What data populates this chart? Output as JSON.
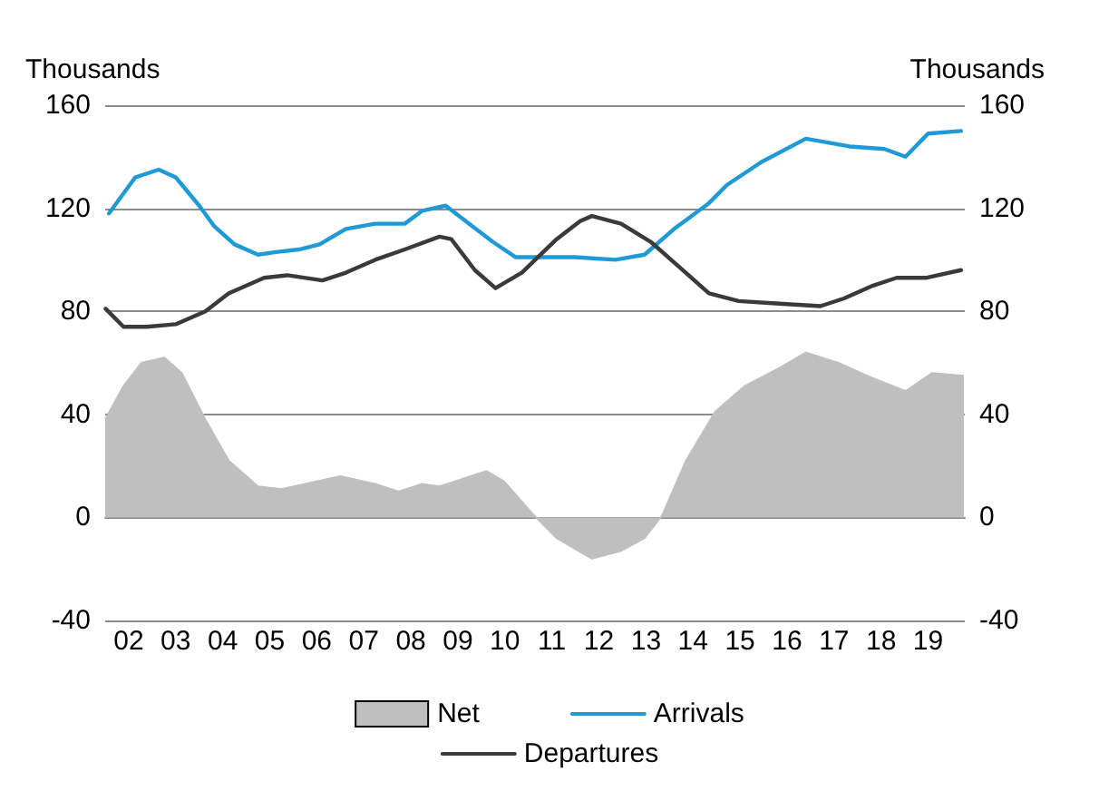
{
  "chart_data": {
    "type": "line",
    "ylabel": "Thousands",
    "y2label": "Thousands",
    "xlim": [
      2001.5,
      2019.78
    ],
    "xticks": [
      {
        "value": 2002,
        "label": "02"
      },
      {
        "value": 2003,
        "label": "03"
      },
      {
        "value": 2004,
        "label": "04"
      },
      {
        "value": 2005,
        "label": "05"
      },
      {
        "value": 2006,
        "label": "06"
      },
      {
        "value": 2007,
        "label": "07"
      },
      {
        "value": 2008,
        "label": "08"
      },
      {
        "value": 2009,
        "label": "09"
      },
      {
        "value": 2010,
        "label": "10"
      },
      {
        "value": 2011,
        "label": "11"
      },
      {
        "value": 2012,
        "label": "12"
      },
      {
        "value": 2013,
        "label": "13"
      },
      {
        "value": 2014,
        "label": "14"
      },
      {
        "value": 2015,
        "label": "15"
      },
      {
        "value": 2016,
        "label": "16"
      },
      {
        "value": 2017,
        "label": "17"
      },
      {
        "value": 2018,
        "label": "18"
      },
      {
        "value": 2019,
        "label": "19"
      }
    ],
    "ylim": [
      -40,
      160
    ],
    "yticks": [
      -40,
      0,
      40,
      80,
      120,
      160
    ],
    "y2lim": [
      -40,
      160
    ],
    "y2ticks": [
      -40,
      0,
      40,
      80,
      120,
      160
    ],
    "grid": "y",
    "legend": "bottom",
    "marker": "none",
    "line_style": "solid",
    "series": [
      {
        "name": "Net",
        "type": "area",
        "color": "#bfbfbf",
        "x": [
          2001.5,
          2001.89,
          2002.27,
          2002.76,
          2003.13,
          2003.63,
          2004.13,
          2004.75,
          2005.25,
          2005.75,
          2006.5,
          2007.24,
          2007.74,
          2008.24,
          2008.61,
          2009.61,
          2009.98,
          2010.61,
          2011.1,
          2011.85,
          2012.47,
          2012.97,
          2013.35,
          2013.85,
          2014.47,
          2015.1,
          2015.84,
          2016.4,
          2017.09,
          2017.83,
          2018.52,
          2019.08,
          2019.76
        ],
        "values": [
          38,
          51,
          60,
          62,
          56,
          38,
          22,
          12,
          11,
          13,
          16,
          13,
          10,
          13,
          12,
          18,
          14,
          1,
          -8,
          -16,
          -13,
          -8,
          1,
          22,
          41,
          51,
          58,
          64,
          60,
          54,
          49,
          56,
          55
        ]
      },
      {
        "name": "Arrivals",
        "color": "#1f9ad6",
        "x": [
          2001.58,
          2002.14,
          2002.64,
          2003.0,
          2003.5,
          2003.82,
          2004.25,
          2004.75,
          2005.13,
          2005.62,
          2006.06,
          2006.62,
          2007.24,
          2007.87,
          2008.24,
          2008.74,
          2009.24,
          2009.74,
          2010.23,
          2010.86,
          2011.48,
          2012.35,
          2012.97,
          2013.6,
          2014.34,
          2014.72,
          2015.46,
          2016.4,
          2017.33,
          2018.07,
          2018.52,
          2019.0,
          2019.7
        ],
        "values": [
          118,
          132,
          135,
          132,
          121,
          113,
          106,
          102,
          103,
          104,
          106,
          112,
          114,
          114,
          119,
          121,
          114,
          107,
          101,
          101,
          101,
          100,
          102,
          112,
          122,
          129,
          138,
          147,
          144,
          143,
          140,
          149,
          150
        ]
      },
      {
        "name": "Departures",
        "color": "#3a3a3a",
        "x": [
          2001.51,
          2001.89,
          2002.39,
          2003.0,
          2003.63,
          2004.13,
          2004.88,
          2005.37,
          2006.12,
          2006.62,
          2007.24,
          2007.87,
          2008.61,
          2008.86,
          2009.36,
          2009.8,
          2010.36,
          2011.1,
          2011.6,
          2011.85,
          2012.47,
          2013.1,
          2013.72,
          2014.34,
          2014.97,
          2015.84,
          2016.71,
          2017.21,
          2017.83,
          2018.33,
          2018.95,
          2019.7
        ],
        "values": [
          81,
          74,
          74,
          75,
          80,
          87,
          93,
          94,
          92,
          95,
          100,
          104,
          109,
          108,
          96,
          89,
          95,
          108,
          115,
          117,
          114,
          107,
          97,
          87,
          84,
          83,
          82,
          85,
          90,
          93,
          93,
          96
        ]
      }
    ]
  }
}
